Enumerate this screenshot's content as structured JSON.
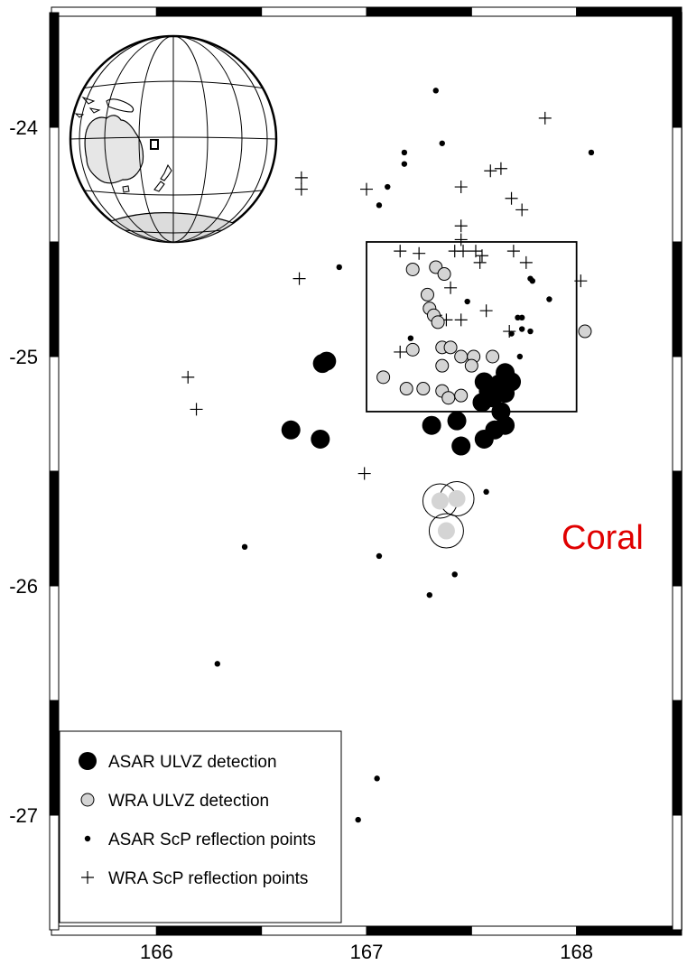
{
  "region_label": "Coral",
  "colors": {
    "region_label": "#e00000",
    "asar_ulvz": "#000000",
    "wra_ulvz": "#d4d4d4",
    "frame": "#000000"
  },
  "chart_data": {
    "type": "scatter",
    "xlim": [
      165.5,
      168.5
    ],
    "ylim": [
      -27.5,
      -23.5
    ],
    "x_ticks": [
      {
        "value": 166,
        "label": "166"
      },
      {
        "value": 167,
        "label": "167"
      },
      {
        "value": 168,
        "label": "168"
      }
    ],
    "y_ticks": [
      {
        "value": -24,
        "label": "-24"
      },
      {
        "value": -25,
        "label": "-25"
      },
      {
        "value": -26,
        "label": "-26"
      },
      {
        "value": -27,
        "label": "-27"
      }
    ],
    "study_box": {
      "lon_min": 167.0,
      "lon_max": 168.0,
      "lat_min": -25.24,
      "lat_max": -24.5
    },
    "legend": {
      "position": "bottom-left",
      "entries": [
        {
          "symbol": "asar-ulvz",
          "label": "ASAR ULVZ detection"
        },
        {
          "symbol": "wra-ulvz",
          "label": "WRA ULVZ detection"
        },
        {
          "symbol": "asar-scp",
          "label": "ASAR ScP reflection points"
        },
        {
          "symbol": "wra-scp",
          "label": "WRA ScP reflection points"
        }
      ]
    },
    "series": [
      {
        "name": "ASAR ULVZ detection",
        "symbol": "large-black-circle",
        "points": [
          [
            166.81,
            -25.02
          ],
          [
            166.79,
            -25.03
          ],
          [
            166.64,
            -25.32
          ],
          [
            166.78,
            -25.36
          ],
          [
            167.31,
            -25.3
          ],
          [
            167.43,
            -25.28
          ],
          [
            167.45,
            -25.39
          ],
          [
            167.56,
            -25.36
          ],
          [
            167.61,
            -25.32
          ],
          [
            167.66,
            -25.3
          ],
          [
            167.64,
            -25.24
          ],
          [
            167.55,
            -25.2
          ],
          [
            167.6,
            -25.18
          ],
          [
            167.66,
            -25.16
          ],
          [
            167.56,
            -25.11
          ],
          [
            167.63,
            -25.12
          ],
          [
            167.66,
            -25.07
          ],
          [
            167.69,
            -25.11
          ],
          [
            167.58,
            -25.15
          ]
        ]
      },
      {
        "name": "WRA ULVZ detection",
        "symbol": "gray-circle",
        "points": [
          [
            167.22,
            -24.62
          ],
          [
            167.33,
            -24.61
          ],
          [
            167.37,
            -24.64
          ],
          [
            167.29,
            -24.73
          ],
          [
            167.3,
            -24.79
          ],
          [
            167.32,
            -24.82
          ],
          [
            167.34,
            -24.85
          ],
          [
            167.22,
            -24.97
          ],
          [
            167.36,
            -24.96
          ],
          [
            167.4,
            -24.96
          ],
          [
            167.45,
            -25.0
          ],
          [
            167.51,
            -25.0
          ],
          [
            167.6,
            -25.0
          ],
          [
            167.36,
            -25.04
          ],
          [
            167.5,
            -25.04
          ],
          [
            167.08,
            -25.09
          ],
          [
            167.19,
            -25.14
          ],
          [
            167.27,
            -25.14
          ],
          [
            167.36,
            -25.15
          ],
          [
            167.39,
            -25.18
          ],
          [
            167.45,
            -25.17
          ],
          [
            168.04,
            -24.89
          ]
        ]
      },
      {
        "name": "ULVZ outline (large open circles)",
        "symbol": "open-circle",
        "points": [
          [
            167.35,
            -25.63
          ],
          [
            167.43,
            -25.62
          ],
          [
            167.38,
            -25.76
          ]
        ]
      },
      {
        "name": "ULVZ fill (small gray in open circles)",
        "symbol": "small-gray-circle",
        "points": [
          [
            167.35,
            -25.63
          ],
          [
            167.43,
            -25.62
          ],
          [
            167.38,
            -25.76
          ]
        ]
      },
      {
        "name": "ASAR ScP reflection points",
        "symbol": "small-dot",
        "points": [
          [
            167.33,
            -23.84
          ],
          [
            167.36,
            -24.07
          ],
          [
            167.18,
            -24.11
          ],
          [
            167.18,
            -24.16
          ],
          [
            168.07,
            -24.11
          ],
          [
            167.1,
            -24.26
          ],
          [
            167.06,
            -24.34
          ],
          [
            166.87,
            -24.61
          ],
          [
            167.48,
            -24.76
          ],
          [
            167.78,
            -24.66
          ],
          [
            167.79,
            -24.67
          ],
          [
            167.87,
            -24.75
          ],
          [
            167.72,
            -24.83
          ],
          [
            167.74,
            -24.83
          ],
          [
            167.74,
            -24.88
          ],
          [
            167.78,
            -24.89
          ],
          [
            167.69,
            -24.9
          ],
          [
            167.21,
            -24.92
          ],
          [
            167.73,
            -25.0
          ],
          [
            167.57,
            -25.59
          ],
          [
            167.06,
            -25.87
          ],
          [
            167.42,
            -25.95
          ],
          [
            167.3,
            -26.04
          ],
          [
            166.42,
            -25.83
          ],
          [
            166.29,
            -26.34
          ],
          [
            167.05,
            -26.84
          ],
          [
            166.96,
            -27.02
          ]
        ]
      },
      {
        "name": "WRA ScP reflection points",
        "symbol": "plus",
        "points": [
          [
            167.85,
            -23.96
          ],
          [
            166.69,
            -24.22
          ],
          [
            166.69,
            -24.27
          ],
          [
            167.59,
            -24.19
          ],
          [
            167.64,
            -24.18
          ],
          [
            167.45,
            -24.26
          ],
          [
            167.69,
            -24.31
          ],
          [
            167.74,
            -24.36
          ],
          [
            167.0,
            -24.27
          ],
          [
            167.45,
            -24.43
          ],
          [
            167.45,
            -24.49
          ],
          [
            167.16,
            -24.54
          ],
          [
            167.25,
            -24.55
          ],
          [
            167.42,
            -24.54
          ],
          [
            167.46,
            -24.54
          ],
          [
            167.52,
            -24.54
          ],
          [
            167.55,
            -24.56
          ],
          [
            167.7,
            -24.54
          ],
          [
            167.54,
            -24.59
          ],
          [
            167.76,
            -24.59
          ],
          [
            166.68,
            -24.66
          ],
          [
            168.02,
            -24.67
          ],
          [
            167.4,
            -24.7
          ],
          [
            167.57,
            -24.8
          ],
          [
            167.45,
            -24.84
          ],
          [
            167.38,
            -24.84
          ],
          [
            167.33,
            -24.82
          ],
          [
            167.68,
            -24.89
          ],
          [
            167.16,
            -24.98
          ],
          [
            166.15,
            -25.09
          ],
          [
            166.19,
            -25.23
          ],
          [
            166.99,
            -25.51
          ]
        ]
      }
    ]
  }
}
